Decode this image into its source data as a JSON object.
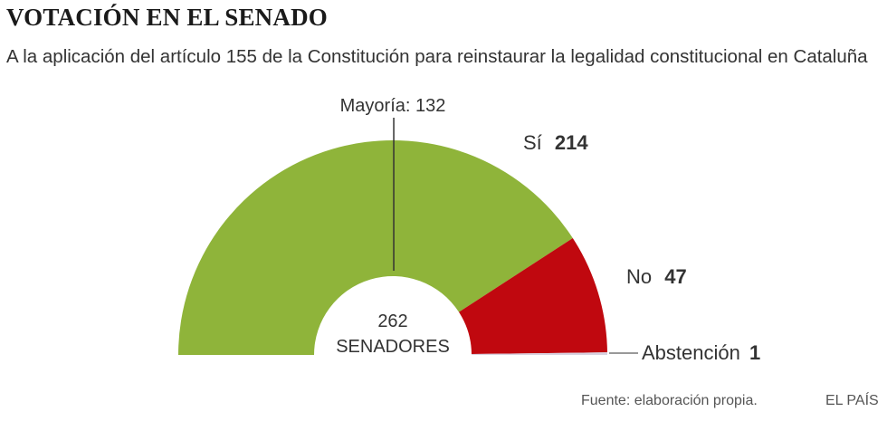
{
  "chart_data": {
    "type": "pie",
    "variant": "half-donut",
    "title": "VOTACIÓN EN EL SENADO",
    "subtitle": "A la aplicación del artículo 155 de la Constitución para reinstaurar la legalidad constitucional en Cataluña",
    "total": 262,
    "total_number": "262",
    "total_label": "SENADORES",
    "majority_label": "Mayoría: 132",
    "majority_value": 132,
    "slices": [
      {
        "label": "Sí",
        "value": 214,
        "color": "#8fb43a"
      },
      {
        "label": "No",
        "value": 47,
        "color": "#c0080f"
      },
      {
        "label": "Abstención",
        "value": 1,
        "color": "#d8d2e0"
      }
    ]
  },
  "footer": {
    "source": "Fuente: elaboración propia.",
    "brand": "EL PAÍS"
  }
}
